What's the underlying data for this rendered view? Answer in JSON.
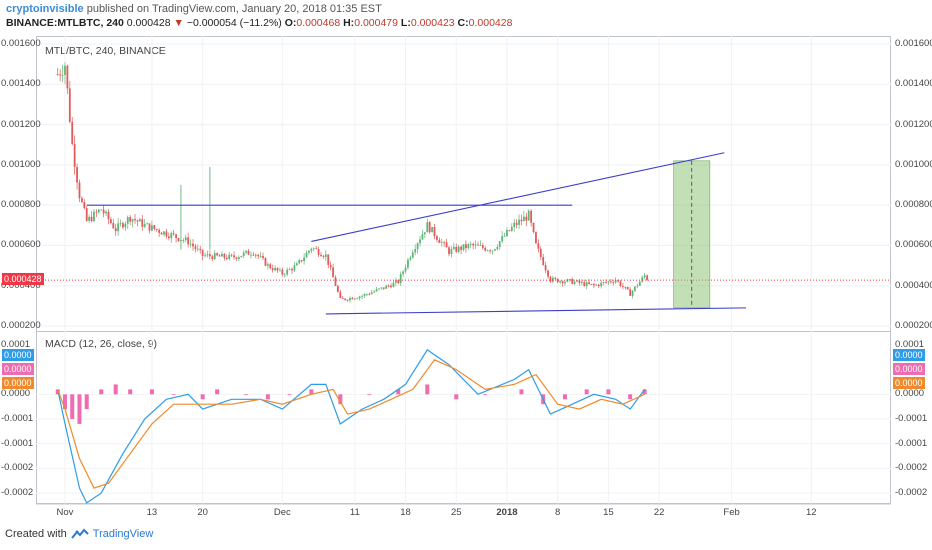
{
  "header": {
    "author": "cryptoinvisible",
    "published": "published on TradingView.com, January 20, 2018 01:35 EST",
    "symbol": "BINANCE:MTLBTC, 240",
    "last": "0.000428",
    "arrow": "▼",
    "change": "−0.000054 (−11.2%)",
    "o_label": "O:",
    "o": "0.000468",
    "h_label": "H:",
    "h": "0.000479",
    "l_label": "L:",
    "l": "0.000423",
    "c_label": "C:",
    "c": "0.000428"
  },
  "colors": {
    "up": "#5fb576",
    "down": "#e05a5a",
    "trendline": "#3b3fc8",
    "macd_line": "#2e9ce8",
    "signal_line": "#f08a2c",
    "histogram": "#f06bb0",
    "target_box": "#8fc47a",
    "price_badge": "#f23645"
  },
  "footer": {
    "created_with": "Created with",
    "brand": "TradingView"
  },
  "chart_data": [
    {
      "type": "candlestick",
      "title": "MTL/BTC, 240, BINANCE",
      "ylim": [
        0.0002,
        0.0016
      ],
      "y_ticks": [
        "0.001600",
        "0.001400",
        "0.001200",
        "0.001000",
        "0.000800",
        "0.000600",
        "0.000400",
        "0.000200"
      ],
      "current_price_label": "0.000428",
      "x_ticks": [
        {
          "label": "Nov",
          "date": "2017-11-01",
          "bold": false
        },
        {
          "label": "13",
          "date": "2017-11-13",
          "bold": false
        },
        {
          "label": "20",
          "date": "2017-11-20",
          "bold": false
        },
        {
          "label": "Dec",
          "date": "2017-12-01",
          "bold": false
        },
        {
          "label": "11",
          "date": "2017-12-11",
          "bold": false
        },
        {
          "label": "18",
          "date": "2017-12-18",
          "bold": false
        },
        {
          "label": "25",
          "date": "2017-12-25",
          "bold": false
        },
        {
          "label": "2018",
          "date": "2018-01-01",
          "bold": true
        },
        {
          "label": "8",
          "date": "2018-01-08",
          "bold": false
        },
        {
          "label": "15",
          "date": "2018-01-15",
          "bold": false
        },
        {
          "label": "22",
          "date": "2018-01-22",
          "bold": false
        },
        {
          "label": "Feb",
          "date": "2018-02-01",
          "bold": false
        },
        {
          "label": "12",
          "date": "2018-02-12",
          "bold": false
        }
      ],
      "price_path": [
        [
          "2017-10-31",
          0.00145
        ],
        [
          "2017-11-01",
          0.0015
        ],
        [
          "2017-11-02",
          0.0011
        ],
        [
          "2017-11-03",
          0.00085
        ],
        [
          "2017-11-04",
          0.00072
        ],
        [
          "2017-11-06",
          0.00078
        ],
        [
          "2017-11-08",
          0.00068
        ],
        [
          "2017-11-10",
          0.00074
        ],
        [
          "2017-11-12",
          0.0007
        ],
        [
          "2017-11-15",
          0.00066
        ],
        [
          "2017-11-18",
          0.00062
        ],
        [
          "2017-11-20",
          0.00055
        ],
        [
          "2017-11-24",
          0.00054
        ],
        [
          "2017-11-27",
          0.00057
        ],
        [
          "2017-11-29",
          0.0005
        ],
        [
          "2017-12-01",
          0.00046
        ],
        [
          "2017-12-03",
          0.0005
        ],
        [
          "2017-12-05",
          0.00059
        ],
        [
          "2017-12-07",
          0.00055
        ],
        [
          "2017-12-09",
          0.00033
        ],
        [
          "2017-12-12",
          0.00035
        ],
        [
          "2017-12-15",
          0.00039
        ],
        [
          "2017-12-17",
          0.00042
        ],
        [
          "2017-12-19",
          0.00058
        ],
        [
          "2017-12-21",
          0.0007
        ],
        [
          "2017-12-24",
          0.00057
        ],
        [
          "2017-12-27",
          0.0006
        ],
        [
          "2017-12-30",
          0.00058
        ],
        [
          "2018-01-02",
          0.0007
        ],
        [
          "2018-01-04",
          0.00075
        ],
        [
          "2018-01-05",
          0.0006
        ],
        [
          "2018-01-07",
          0.00043
        ],
        [
          "2018-01-10",
          0.00042
        ],
        [
          "2018-01-13",
          0.0004
        ],
        [
          "2018-01-16",
          0.00043
        ],
        [
          "2018-01-18",
          0.00036
        ],
        [
          "2018-01-20",
          0.00045
        ],
        [
          "2018-01-20T12:00",
          0.000428
        ]
      ],
      "spikes": [
        [
          "2017-11-17",
          0.0009
        ],
        [
          "2017-11-21",
          0.00099
        ]
      ],
      "trendlines": [
        {
          "name": "resistance",
          "from": [
            "2017-11-04",
            0.0008
          ],
          "to": [
            "2018-01-10",
            0.0008
          ]
        },
        {
          "name": "rising-upper",
          "from": [
            "2017-12-05",
            0.00062
          ],
          "to": [
            "2018-01-31",
            0.00106
          ]
        },
        {
          "name": "lower-support",
          "from": [
            "2017-12-07",
            0.00026
          ],
          "to": [
            "2018-02-03",
            0.00029
          ]
        }
      ],
      "target_box": {
        "from": [
          "2018-01-24",
          0.00029
        ],
        "to": [
          "2018-01-29",
          0.00102
        ]
      }
    },
    {
      "type": "line",
      "title": "MACD (12, 26, close, 9)",
      "ylim": [
        -0.00021,
        0.00011
      ],
      "y_ticks": [
        "0.0001",
        "0.0000",
        "-0.0001",
        "-0.0001",
        "-0.0002",
        "-0.0002"
      ],
      "badges": [
        {
          "text": "0.0000",
          "color": "#2e9ce8"
        },
        {
          "text": "0.0000",
          "color": "#f06bb0"
        },
        {
          "text": "0.0000",
          "color": "#f08a2c"
        }
      ],
      "series": [
        {
          "values": [
            [
              "2017-10-31",
              1e-05
            ],
            [
              "2017-11-01",
              -6e-05
            ],
            [
              "2017-11-03",
              -0.00019
            ],
            [
              "2017-11-04",
              -0.00022
            ],
            [
              "2017-11-06",
              -0.0002
            ],
            [
              "2017-11-09",
              -0.00012
            ],
            [
              "2017-11-12",
              -5e-05
            ],
            [
              "2017-11-15",
              -1e-05
            ],
            [
              "2017-11-18",
              0.0
            ],
            [
              "2017-11-20",
              -3e-05
            ],
            [
              "2017-11-24",
              -1e-05
            ],
            [
              "2017-11-28",
              -1e-05
            ],
            [
              "2017-12-01",
              -3e-05
            ],
            [
              "2017-12-05",
              2e-05
            ],
            [
              "2017-12-07",
              2e-05
            ],
            [
              "2017-12-09",
              -6e-05
            ],
            [
              "2017-12-12",
              -3e-05
            ],
            [
              "2017-12-15",
              -1e-05
            ],
            [
              "2017-12-18",
              2e-05
            ],
            [
              "2017-12-21",
              9e-05
            ],
            [
              "2017-12-24",
              6e-05
            ],
            [
              "2017-12-28",
              0.0
            ],
            [
              "2018-01-02",
              3e-05
            ],
            [
              "2018-01-04",
              5e-05
            ],
            [
              "2018-01-07",
              -4e-05
            ],
            [
              "2018-01-10",
              -2e-05
            ],
            [
              "2018-01-13",
              0.0
            ],
            [
              "2018-01-16",
              -1e-05
            ],
            [
              "2018-01-18",
              -3e-05
            ],
            [
              "2018-01-20",
              1e-05
            ]
          ]
        },
        {
          "values": [
            [
              "2017-10-31",
              1e-05
            ],
            [
              "2017-11-01",
              -3e-05
            ],
            [
              "2017-11-03",
              -0.00013
            ],
            [
              "2017-11-05",
              -0.00019
            ],
            [
              "2017-11-07",
              -0.00018
            ],
            [
              "2017-11-10",
              -0.00012
            ],
            [
              "2017-11-13",
              -6e-05
            ],
            [
              "2017-11-16",
              -2e-05
            ],
            [
              "2017-11-20",
              -2e-05
            ],
            [
              "2017-11-24",
              -2e-05
            ],
            [
              "2017-11-28",
              -1e-05
            ],
            [
              "2017-12-01",
              -2e-05
            ],
            [
              "2017-12-05",
              0.0
            ],
            [
              "2017-12-08",
              1e-05
            ],
            [
              "2017-12-10",
              -4e-05
            ],
            [
              "2017-12-13",
              -3e-05
            ],
            [
              "2017-12-16",
              -1e-05
            ],
            [
              "2017-12-19",
              1e-05
            ],
            [
              "2017-12-22",
              7e-05
            ],
            [
              "2017-12-25",
              5e-05
            ],
            [
              "2017-12-29",
              1e-05
            ],
            [
              "2018-01-02",
              2e-05
            ],
            [
              "2018-01-05",
              4e-05
            ],
            [
              "2018-01-08",
              -2e-05
            ],
            [
              "2018-01-11",
              -3e-05
            ],
            [
              "2018-01-14",
              -1e-05
            ],
            [
              "2018-01-17",
              -2e-05
            ],
            [
              "2018-01-20",
              0.0
            ]
          ]
        }
      ],
      "histogram": [
        [
          "2017-10-31",
          1e-05
        ],
        [
          "2017-11-01",
          -3e-05
        ],
        [
          "2017-11-02",
          -5e-05
        ],
        [
          "2017-11-03",
          -6e-05
        ],
        [
          "2017-11-04",
          -3e-05
        ],
        [
          "2017-11-06",
          1e-05
        ],
        [
          "2017-11-08",
          2e-05
        ],
        [
          "2017-11-10",
          1e-05
        ],
        [
          "2017-11-13",
          1e-05
        ],
        [
          "2017-11-16",
          0.0
        ],
        [
          "2017-11-20",
          -1e-05
        ],
        [
          "2017-11-22",
          1e-05
        ],
        [
          "2017-11-26",
          0.0
        ],
        [
          "2017-11-29",
          -1e-05
        ],
        [
          "2017-12-02",
          0.0
        ],
        [
          "2017-12-05",
          1e-05
        ],
        [
          "2017-12-09",
          -2e-05
        ],
        [
          "2017-12-13",
          0.0
        ],
        [
          "2017-12-17",
          1e-05
        ],
        [
          "2017-12-21",
          2e-05
        ],
        [
          "2017-12-25",
          -1e-05
        ],
        [
          "2017-12-29",
          0.0
        ],
        [
          "2018-01-03",
          1e-05
        ],
        [
          "2018-01-06",
          -2e-05
        ],
        [
          "2018-01-09",
          -1e-05
        ],
        [
          "2018-01-12",
          1e-05
        ],
        [
          "2018-01-15",
          1e-05
        ],
        [
          "2018-01-18",
          -1e-05
        ],
        [
          "2018-01-20",
          1e-05
        ]
      ]
    }
  ]
}
